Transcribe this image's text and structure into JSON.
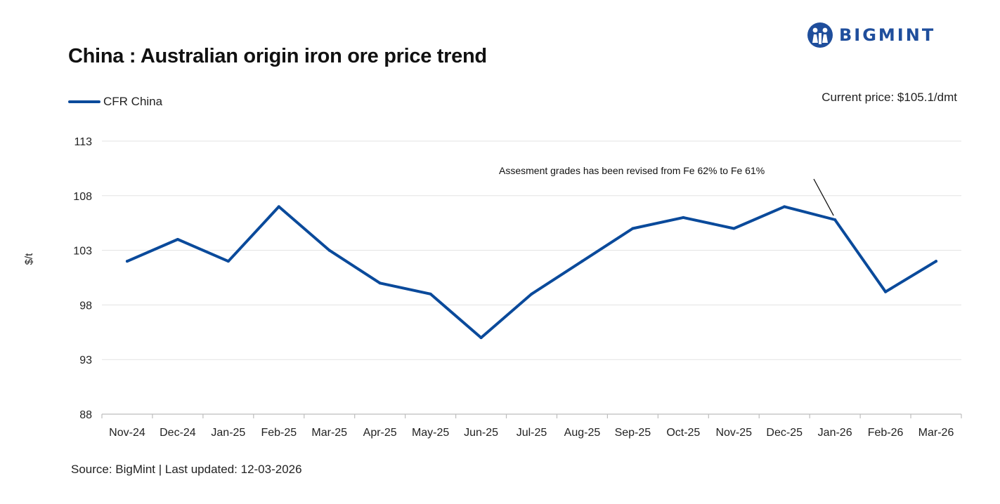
{
  "brand": {
    "name": "BIGMINT",
    "color": "#1f4e9c"
  },
  "header": {
    "title": "China : Australian origin iron ore price trend",
    "current_price": "Current price: $105.1/dmt"
  },
  "footer": {
    "source": "Source: BigMint | Last updated: 12-03-2026"
  },
  "chart_data": {
    "type": "line",
    "title": "China : Australian origin iron ore price trend",
    "xlabel": "",
    "ylabel": "$/t",
    "ylim": [
      88,
      113
    ],
    "yticks": [
      88,
      93,
      98,
      103,
      108,
      113
    ],
    "grid": true,
    "legend_position": "top-left",
    "categories": [
      "Nov-24",
      "Dec-24",
      "Jan-25",
      "Feb-25",
      "Mar-25",
      "Apr-25",
      "May-25",
      "Jun-25",
      "Jul-25",
      "Aug-25",
      "Sep-25",
      "Oct-25",
      "Nov-25",
      "Dec-25",
      "Jan-26",
      "Feb-26",
      "Mar-26"
    ],
    "series": [
      {
        "name": "CFR China",
        "color": "#0a4a9b",
        "values": [
          102,
          104,
          102,
          107,
          103,
          100,
          99,
          95,
          99,
          102,
          105,
          106,
          105,
          107,
          105.8,
          99.2,
          102
        ]
      }
    ],
    "annotations": [
      {
        "text": "Assesment grades has been revised from Fe 62% to Fe 61%",
        "category": "Jan-26"
      }
    ]
  }
}
